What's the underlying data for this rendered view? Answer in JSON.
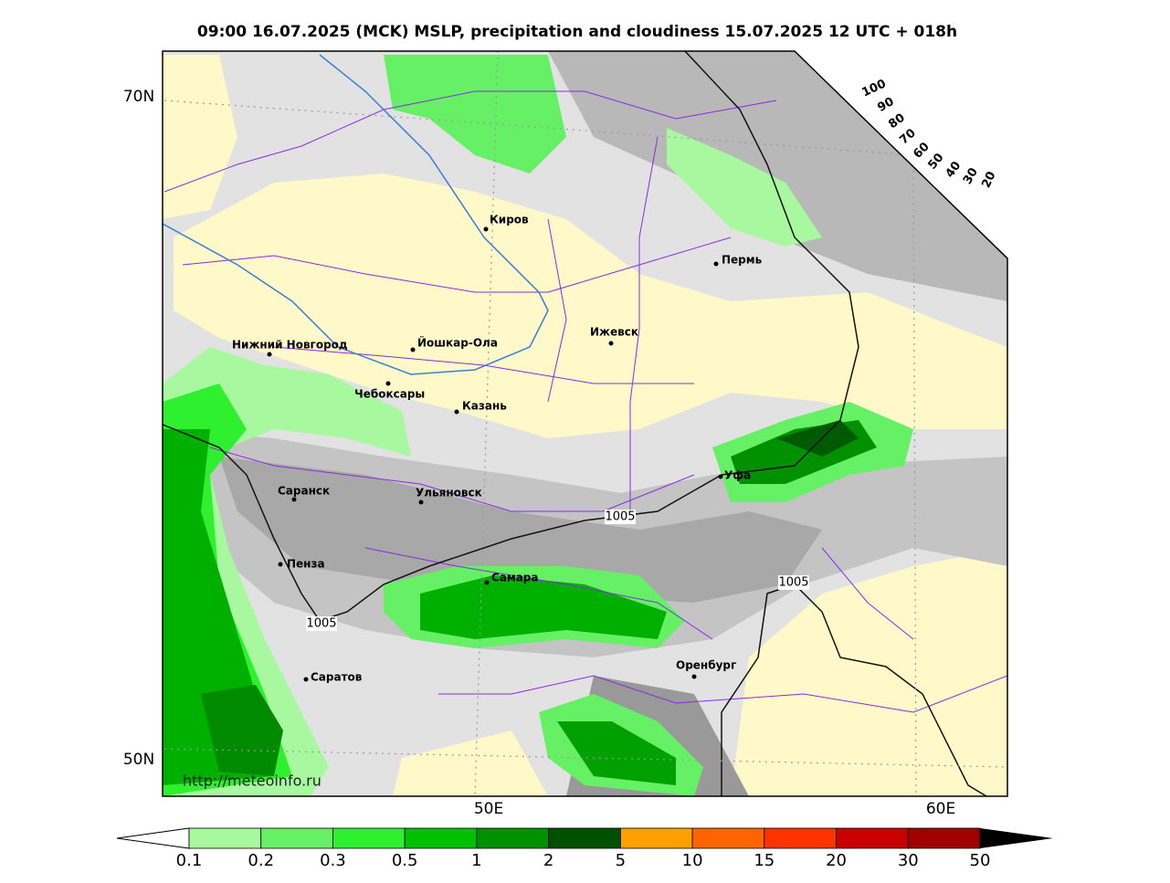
{
  "title": "09:00 16.07.2025 (MCK) MSLP, precipitation and cloudiness 15.07.2025 12 UTC + 018h",
  "map": {
    "lat_labels": [
      "70N",
      "50N"
    ],
    "lon_labels": [
      "50E",
      "60E"
    ],
    "cities": [
      "Киров",
      "Пермь",
      "Ижевск",
      "Нижний Новгород",
      "Йошкар-Ола",
      "Чебоксары",
      "Казань",
      "Саранск",
      "Ульяновск",
      "Уфа",
      "Пенза",
      "Самара",
      "Оренбург",
      "Саратов"
    ],
    "isobar_labels": [
      "1005",
      "1005",
      "1005"
    ],
    "cloud_scale": [
      "100",
      "90",
      "80",
      "70",
      "60",
      "50",
      "40",
      "30",
      "20"
    ],
    "credit": "http://meteoinfo.ru"
  },
  "legend": {
    "labels": [
      "0.1",
      "0.2",
      "0.3",
      "0.5",
      "1",
      "2",
      "5",
      "10",
      "15",
      "20",
      "30",
      "50"
    ]
  }
}
